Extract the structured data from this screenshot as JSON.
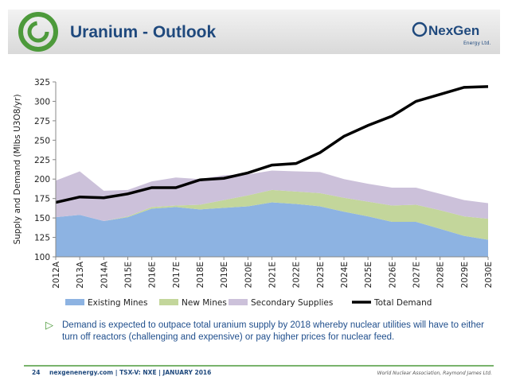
{
  "header": {
    "title": "Uranium - Outlook",
    "logo": "NexGen",
    "logo_sub": "Energy Ltd."
  },
  "chart_data": {
    "type": "area",
    "y_label": "Supply and Demand (Mlbs U3O8/yr)",
    "categories": [
      "2012A",
      "2013A",
      "2014A",
      "2015E",
      "2016E",
      "2017E",
      "2018E",
      "2019E",
      "2020E",
      "2021E",
      "2022E",
      "2023E",
      "2024E",
      "2025E",
      "2026E",
      "2027E",
      "2028E",
      "2029E",
      "2030E"
    ],
    "series": [
      {
        "name": "Existing Mines",
        "color": "#8db3e2",
        "values": [
          151,
          154,
          146,
          151,
          162,
          164,
          161,
          163,
          165,
          170,
          168,
          165,
          158,
          152,
          145,
          145,
          136,
          127,
          122
        ]
      },
      {
        "name": "New Mines",
        "color": "#c3d69b",
        "values": [
          0,
          0,
          0,
          1,
          2,
          2,
          6,
          10,
          14,
          16,
          16,
          17,
          18,
          19,
          21,
          22,
          24,
          25,
          27
        ]
      },
      {
        "name": "Secondary Supplies",
        "color": "#ccc1da",
        "values": [
          47,
          56,
          39,
          34,
          33,
          36,
          33,
          32,
          27,
          25,
          26,
          27,
          24,
          23,
          23,
          22,
          21,
          21,
          20
        ]
      },
      {
        "name": "Total Demand",
        "color": "#000000",
        "type": "line",
        "values": [
          170,
          177,
          176,
          181,
          189,
          189,
          199,
          201,
          208,
          218,
          220,
          234,
          255,
          269,
          281,
          300,
          309,
          318,
          319
        ]
      }
    ],
    "ylim": [
      100,
      325
    ],
    "yticks": [
      100,
      125,
      150,
      175,
      200,
      225,
      250,
      275,
      300,
      325
    ]
  },
  "bullet": "Demand is expected to outpace total uranium supply by 2018 whereby nuclear utilities will have to either turn off reactors (challenging and expensive) or pay higher prices for nuclear feed.",
  "footer": {
    "page": "24",
    "site": "nexgenenergy.com | TSX-V: NXE | JANUARY 2016",
    "source": "World Nuclear Association, Raymond James Ltd."
  }
}
